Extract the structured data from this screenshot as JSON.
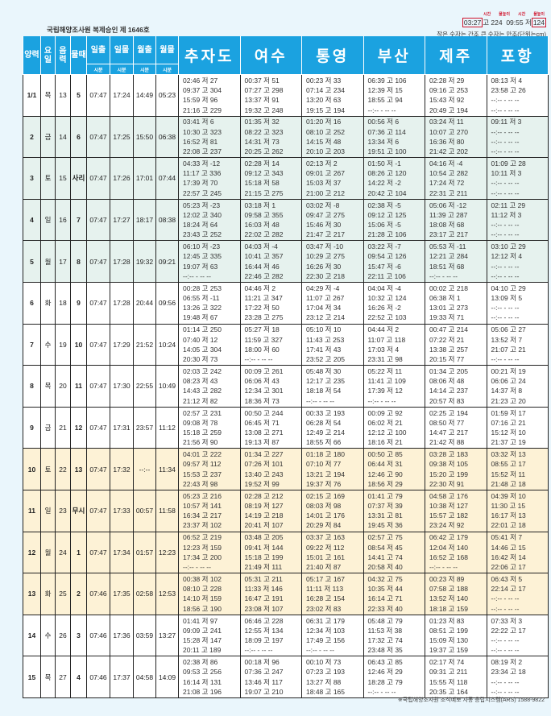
{
  "header": {
    "approval": "국립해양조사원 복제승인 제 1646호",
    "legend": {
      "label_time": "시간",
      "label_height": "물높이",
      "example_time1": "03:27",
      "example_type1": "고",
      "example_height1": "224",
      "example_time2": "09:55",
      "example_type2": "저",
      "example_height2": "124",
      "note": "작은 숫자는 간조  큰 숫자는 만조(단위는cm)"
    }
  },
  "columns": {
    "left": [
      "양력",
      "요일",
      "음력",
      "물때",
      "일출",
      "일몰",
      "월출",
      "월몰"
    ],
    "unit": "시분",
    "cities": [
      "추자도",
      "여수",
      "통영",
      "부산",
      "제주",
      "포항"
    ]
  },
  "colors": {
    "header": "#1ba2e0",
    "green": "#e6f2ee",
    "yellow": "#fdf2d6",
    "white": "#ffffff",
    "legend_red": "#d0142c"
  },
  "rows": [
    {
      "shade": "white",
      "solar": "1/1",
      "weekday": "목",
      "lunar": "13",
      "phase": "5",
      "sunrise": "07:47",
      "sunset": "17:24",
      "moonrise": "14:49",
      "moonset": "05:23",
      "tides": [
        [
          "02:46 저 27",
          "09:37 고 304",
          "15:59 저 96",
          "21:16 고 229"
        ],
        [
          "00:37 저 51",
          "07:27 고 298",
          "13:37 저 91",
          "19:32 고 248"
        ],
        [
          "00:23 저 33",
          "07:14 고 234",
          "13:20 저 63",
          "19:15 고 194"
        ],
        [
          "06:39 고 106",
          "12:39 저 15",
          "18:55 고 94",
          "--:-- - -- --"
        ],
        [
          "02:28 저 29",
          "09:16 고 253",
          "15:43 저 92",
          "20:49 고 194"
        ],
        [
          "08:13 저 4",
          "23:58 고 26",
          "--:-- - -- --",
          "--:-- - -- --"
        ]
      ]
    },
    {
      "shade": "green",
      "solar": "2",
      "weekday": "금",
      "lunar": "14",
      "phase": "6",
      "sunrise": "07:47",
      "sunset": "17:25",
      "moonrise": "15:50",
      "moonset": "06:38",
      "tides": [
        [
          "03:41 저 6",
          "10:30 고 323",
          "16:52 저 81",
          "22:08 고 237"
        ],
        [
          "01:35 저 32",
          "08:22 고 323",
          "14:31 저 73",
          "20:25 고 262"
        ],
        [
          "01:20 저 16",
          "08:10 고 252",
          "14:15 저 48",
          "20:10 고 203"
        ],
        [
          "00:56 저 6",
          "07:36 고 114",
          "13:34 저 6",
          "19:51 고 100"
        ],
        [
          "03:24 저 11",
          "10:07 고 270",
          "16:36 저 80",
          "21:42 고 202"
        ],
        [
          "09:11 저 3",
          "--:-- - -- --",
          "--:-- - -- --",
          "--:-- - -- --"
        ]
      ]
    },
    {
      "shade": "green",
      "solar": "3",
      "weekday": "토",
      "lunar": "15",
      "phase": "사리",
      "sunrise": "07:47",
      "sunset": "17:26",
      "moonrise": "17:01",
      "moonset": "07:44",
      "tides": [
        [
          "04:33 저 -12",
          "11:17 고 336",
          "17:39 저 70",
          "22:57 고 245"
        ],
        [
          "02:28 저 14",
          "09:12 고 343",
          "15:18 저 58",
          "21:15 고 275"
        ],
        [
          "02:13 저 2",
          "09:01 고 267",
          "15:03 저 37",
          "21:00 고 212"
        ],
        [
          "01:50 저 -1",
          "08:26 고 120",
          "14:22 저 -2",
          "20:42 고 104"
        ],
        [
          "04:16 저 -4",
          "10:54 고 282",
          "17:24 저 72",
          "22:31 고 211"
        ],
        [
          "01:09 고 28",
          "10:11 저 3",
          "--:-- - -- --",
          "--:-- - -- --"
        ]
      ]
    },
    {
      "shade": "green",
      "solar": "4",
      "weekday": "일",
      "lunar": "16",
      "phase": "7",
      "sunrise": "07:47",
      "sunset": "17:27",
      "moonrise": "18:17",
      "moonset": "08:38",
      "tides": [
        [
          "05:23 저 -23",
          "12:02 고 340",
          "18:24 저 64",
          "23:43 고 252"
        ],
        [
          "03:18 저 1",
          "09:58 고 355",
          "16:03 저 48",
          "22:02 고 282"
        ],
        [
          "03:02 저 -8",
          "09:47 고 275",
          "15:46 저 30",
          "21:47 고 217"
        ],
        [
          "02:38 저 -5",
          "09:12 고 125",
          "15:06 저 -5",
          "21:28 고 106"
        ],
        [
          "05:06 저 -12",
          "11:39 고 287",
          "18:08 저 68",
          "23:17 고 217"
        ],
        [
          "02:11 고 29",
          "11:12 저 3",
          "--:-- - -- --",
          "--:-- - -- --"
        ]
      ]
    },
    {
      "shade": "green",
      "solar": "5",
      "weekday": "월",
      "lunar": "17",
      "phase": "8",
      "sunrise": "07:47",
      "sunset": "17:28",
      "moonrise": "19:32",
      "moonset": "09:21",
      "tides": [
        [
          "06:10 저 -23",
          "12:45 고 335",
          "19:07 저 63",
          "--:-- - -- --"
        ],
        [
          "04:03 저 -4",
          "10:41 고 357",
          "16:44 저 46",
          "22:46 고 282"
        ],
        [
          "03:47 저 -10",
          "10:29 고 275",
          "16:26 저 30",
          "22:30 고 218"
        ],
        [
          "03:22 저 -7",
          "09:54 고 126",
          "15:47 저 -6",
          "22:11 고 106"
        ],
        [
          "05:53 저 -11",
          "12:21 고 284",
          "18:51 저 68",
          "--:-- - -- --"
        ],
        [
          "03:10 고 29",
          "12:12 저 4",
          "--:-- - -- --",
          "--:-- - -- --"
        ]
      ]
    },
    {
      "shade": "white",
      "solar": "6",
      "weekday": "화",
      "lunar": "18",
      "phase": "9",
      "sunrise": "07:47",
      "sunset": "17:28",
      "moonrise": "20:44",
      "moonset": "09:56",
      "tides": [
        [
          "00:28 고 253",
          "06:55 저 -11",
          "13:26 고 322",
          "19:48 저 67"
        ],
        [
          "04:46 저 2",
          "11:21 고 347",
          "17:22 저 50",
          "23:28 고 275"
        ],
        [
          "04:29 저 -4",
          "11:07 고 267",
          "17:04 저 34",
          "23:12 고 214"
        ],
        [
          "04:04 저 -4",
          "10:32 고 124",
          "16:26 저 -2",
          "22:52 고 103"
        ],
        [
          "00:02 고 218",
          "06:38 저 1",
          "13:01 고 273",
          "19:33 저 71"
        ],
        [
          "04:10 고 29",
          "13:09 저 5",
          "--:-- - -- --",
          "--:-- - -- --"
        ]
      ]
    },
    {
      "shade": "white",
      "solar": "7",
      "weekday": "수",
      "lunar": "19",
      "phase": "10",
      "sunrise": "07:47",
      "sunset": "17:29",
      "moonrise": "21:52",
      "moonset": "10:24",
      "tides": [
        [
          "01:14 고 250",
          "07:40 저 12",
          "14:05 고 304",
          "20:30 저 73"
        ],
        [
          "05:27 저 18",
          "11:59 고 327",
          "18:00 저 60",
          "--:-- - -- --"
        ],
        [
          "05:10 저 10",
          "11:43 고 253",
          "17:41 저 43",
          "23:52 고 205"
        ],
        [
          "04:44 저 2",
          "11:07 고 118",
          "17:03 저 4",
          "23:31 고 98"
        ],
        [
          "00:47 고 214",
          "07:22 저 21",
          "13:38 고 257",
          "20:15 저 77"
        ],
        [
          "05:06 고 27",
          "13:52 저 7",
          "21:07 고 21",
          "--:-- - -- --"
        ]
      ]
    },
    {
      "shade": "white",
      "solar": "8",
      "weekday": "목",
      "lunar": "20",
      "phase": "11",
      "sunrise": "07:47",
      "sunset": "17:30",
      "moonrise": "22:55",
      "moonset": "10:49",
      "tides": [
        [
          "02:03 고 242",
          "08:23 저 43",
          "14:43 고 282",
          "21:12 저 82"
        ],
        [
          "00:09 고 261",
          "06:06 저 43",
          "12:34 고 301",
          "18:36 저 73"
        ],
        [
          "05:48 저 30",
          "12:17 고 235",
          "18:18 저 54",
          "--:-- - -- --"
        ],
        [
          "05:22 저 11",
          "11:41 고 109",
          "17:39 저 12",
          "--:-- - -- --"
        ],
        [
          "01:34 고 205",
          "08:06 저 48",
          "14:14 고 237",
          "20:57 저 83"
        ],
        [
          "00:21 저 19",
          "06:06 고 24",
          "14:37 저 8",
          "21:23 고 20"
        ]
      ]
    },
    {
      "shade": "white",
      "solar": "9",
      "weekday": "금",
      "lunar": "21",
      "phase": "12",
      "sunrise": "07:47",
      "sunset": "17:31",
      "moonrise": "23:57",
      "moonset": "11:12",
      "tides": [
        [
          "02:57 고 231",
          "09:08 저 78",
          "15:18 고 259",
          "21:56 저 90"
        ],
        [
          "00:50 고 244",
          "06:45 저 71",
          "13:08 고 271",
          "19:13 저 87"
        ],
        [
          "00:33 고 193",
          "06:28 저 54",
          "12:49 고 214",
          "18:55 저 66"
        ],
        [
          "00:09 고 92",
          "06:02 저 21",
          "12:12 고 100",
          "18:16 저 21"
        ],
        [
          "02:25 고 194",
          "08:50 저 77",
          "14:47 고 217",
          "21:42 저 88"
        ],
        [
          "01:59 저 17",
          "07:16 고 21",
          "15:12 저 10",
          "21:37 고 19"
        ]
      ]
    },
    {
      "shade": "yellow",
      "solar": "10",
      "weekday": "토",
      "lunar": "22",
      "phase": "13",
      "sunrise": "07:47",
      "sunset": "17:32",
      "moonrise": "--:--",
      "moonset": "11:34",
      "tides": [
        [
          "04:01 고 222",
          "09:57 저 112",
          "15:53 고 237",
          "22:43 저 98"
        ],
        [
          "01:34 고 227",
          "07:26 저 101",
          "13:40 고 243",
          "19:52 저 99"
        ],
        [
          "01:18 고 180",
          "07:10 저 77",
          "13:21 고 194",
          "19:37 저 76"
        ],
        [
          "00:50 고 85",
          "06:44 저 31",
          "12:46 고 90",
          "18:56 저 29"
        ],
        [
          "03:28 고 183",
          "09:38 저 105",
          "15:20 고 199",
          "22:30 저 91"
        ],
        [
          "03:32 저 13",
          "08:55 고 17",
          "15:52 저 11",
          "21:48 고 18"
        ]
      ]
    },
    {
      "shade": "yellow",
      "solar": "11",
      "weekday": "일",
      "lunar": "23",
      "phase": "무시",
      "sunrise": "07:47",
      "sunset": "17:33",
      "moonrise": "00:57",
      "moonset": "11:58",
      "tides": [
        [
          "05:23 고 216",
          "10:57 저 141",
          "16:34 고 217",
          "23:37 저 102"
        ],
        [
          "02:28 고 212",
          "08:19 저 127",
          "14:19 고 218",
          "20:41 저 107"
        ],
        [
          "02:15 고 169",
          "08:03 저 98",
          "14:01 고 176",
          "20:29 저 84"
        ],
        [
          "01:41 고 79",
          "07:37 저 39",
          "13:31 고 81",
          "19:45 저 36"
        ],
        [
          "04:58 고 176",
          "10:38 저 127",
          "15:57 고 182",
          "23:24 저 92"
        ],
        [
          "04:39 저 10",
          "11:30 고 15",
          "16:17 저 13",
          "22:01 고 18"
        ]
      ]
    },
    {
      "shade": "yellow",
      "solar": "12",
      "weekday": "월",
      "lunar": "24",
      "phase": "1",
      "sunrise": "07:47",
      "sunset": "17:34",
      "moonrise": "01:57",
      "moonset": "12:23",
      "tides": [
        [
          "06:52 고 219",
          "12:23 저 159",
          "17:34 고 200",
          "--:-- - -- --"
        ],
        [
          "03:48 고 205",
          "09:41 저 144",
          "15:18 고 199",
          "21:49 저 111"
        ],
        [
          "03:37 고 163",
          "09:22 저 112",
          "15:01 고 161",
          "21:40 저 87"
        ],
        [
          "02:57 고 75",
          "08:54 저 45",
          "14:41 고 74",
          "20:58 저 40"
        ],
        [
          "06:42 고 179",
          "12:04 저 140",
          "16:52 고 168",
          "--:-- - -- --"
        ],
        [
          "05:41 저 7",
          "14:46 고 15",
          "16:42 저 14",
          "22:06 고 17"
        ]
      ]
    },
    {
      "shade": "yellow",
      "solar": "13",
      "weekday": "화",
      "lunar": "25",
      "phase": "2",
      "sunrise": "07:46",
      "sunset": "17:35",
      "moonrise": "02:58",
      "moonset": "12:53",
      "tides": [
        [
          "00:38 저 102",
          "08:10 고 228",
          "14:10 저 159",
          "18:56 고 190"
        ],
        [
          "05:31 고 211",
          "11:33 저 146",
          "16:47 고 191",
          "23:08 저 107"
        ],
        [
          "05:17 고 167",
          "11:11 저 113",
          "16:28 고 154",
          "23:02 저 83"
        ],
        [
          "04:32 고 75",
          "10:35 저 44",
          "16:14 고 71",
          "22:33 저 40"
        ],
        [
          "00:23 저 89",
          "07:58 고 188",
          "13:52 저 140",
          "18:18 고 159"
        ],
        [
          "06:43 저 5",
          "22:14 고 17",
          "--:-- - -- --",
          "--:-- - -- --"
        ]
      ]
    },
    {
      "shade": "white",
      "solar": "14",
      "weekday": "수",
      "lunar": "26",
      "phase": "3",
      "sunrise": "07:46",
      "sunset": "17:36",
      "moonrise": "03:59",
      "moonset": "13:27",
      "tides": [
        [
          "01:41 저 97",
          "09:09 고 241",
          "15:28 저 147",
          "20:11 고 189"
        ],
        [
          "06:46 고 228",
          "12:55 저 134",
          "18:09 고 197",
          "--:-- - -- --"
        ],
        [
          "06:31 고 179",
          "12:34 저 103",
          "17:49 고 156",
          "--:-- - -- --"
        ],
        [
          "05:48 고 79",
          "11:53 저 38",
          "17:32 고 74",
          "23:48 저 35"
        ],
        [
          "01:23 저 83",
          "08:51 고 199",
          "15:09 저 130",
          "19:37 고 159"
        ],
        [
          "07:33 저 3",
          "22:22 고 17",
          "--:-- - -- --",
          "--:-- - -- --"
        ]
      ]
    },
    {
      "shade": "white",
      "solar": "15",
      "weekday": "목",
      "lunar": "27",
      "phase": "4",
      "sunrise": "07:46",
      "sunset": "17:37",
      "moonrise": "04:58",
      "moonset": "14:09",
      "tides": [
        [
          "02:38 저 86",
          "09:53 고 256",
          "16:14 저 131",
          "21:08 고 196"
        ],
        [
          "00:18 저 96",
          "07:36 고 247",
          "13:46 저 117",
          "19:07 고 210"
        ],
        [
          "00:10 저 73",
          "07:23 고 193",
          "13:27 저 88",
          "18:48 고 165"
        ],
        [
          "06:43 고 85",
          "12:46 저 29",
          "18:28 고 79",
          "--:-- - -- --"
        ],
        [
          "02:17 저 74",
          "09:31 고 211",
          "15:55 저 118",
          "20:35 고 164"
        ],
        [
          "08:19 저 2",
          "23:34 고 18",
          "--:-- - -- --",
          "--:-- - -- --"
        ]
      ]
    }
  ],
  "footer": "※국립해양조사원 조석예보 자동 응답시스템(ARS) 1588-9822"
}
